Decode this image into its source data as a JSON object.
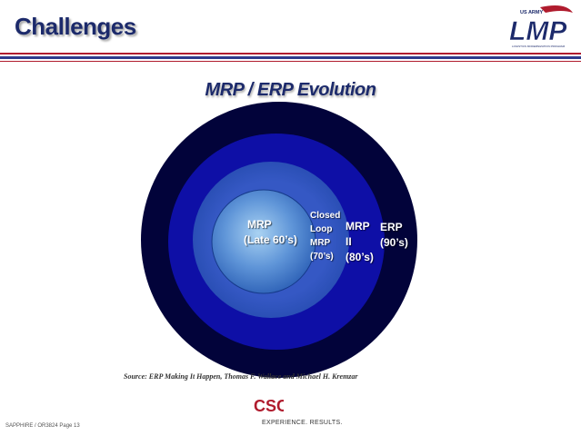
{
  "header": {
    "title": "Challenges",
    "logo": {
      "top_text": "US ARMY",
      "mark": "LMP",
      "sub_text": "LOGISTICS MODERNIZATION PROGRAM",
      "accent_color": "#b01c2e",
      "brand_color": "#1c2a6b"
    }
  },
  "diagram": {
    "title": "MRP / ERP Evolution",
    "rings": [
      {
        "id": "mrp",
        "lines": [
          "MRP",
          "(Late 60’s)"
        ]
      },
      {
        "id": "closed-loop-mrp",
        "lines": [
          "Closed",
          "Loop",
          "MRP",
          "(70’s)"
        ]
      },
      {
        "id": "mrp-ii",
        "lines": [
          "MRP",
          "II",
          "(80’s)"
        ]
      },
      {
        "id": "erp",
        "lines": [
          "ERP",
          "(90’s)"
        ]
      }
    ],
    "colors": {
      "erp": "#02033a",
      "mrp_ii": "#0e0fa6",
      "closed_loop_outer": "#2a4fb5",
      "core_center": "#a9d2f2",
      "core_edge": "#2f63b8",
      "label": "#ffffff"
    }
  },
  "source": "Source:  ERP Making It Happen, Thomas F. Wallace and Michael H. Kremzar",
  "footer": {
    "page_label": "SAPPHIRE / OR3824 Page 13",
    "company_mark": "CSC",
    "company_tagline": "EXPERIENCE. RESULTS.",
    "company_color": "#b01c2e"
  }
}
